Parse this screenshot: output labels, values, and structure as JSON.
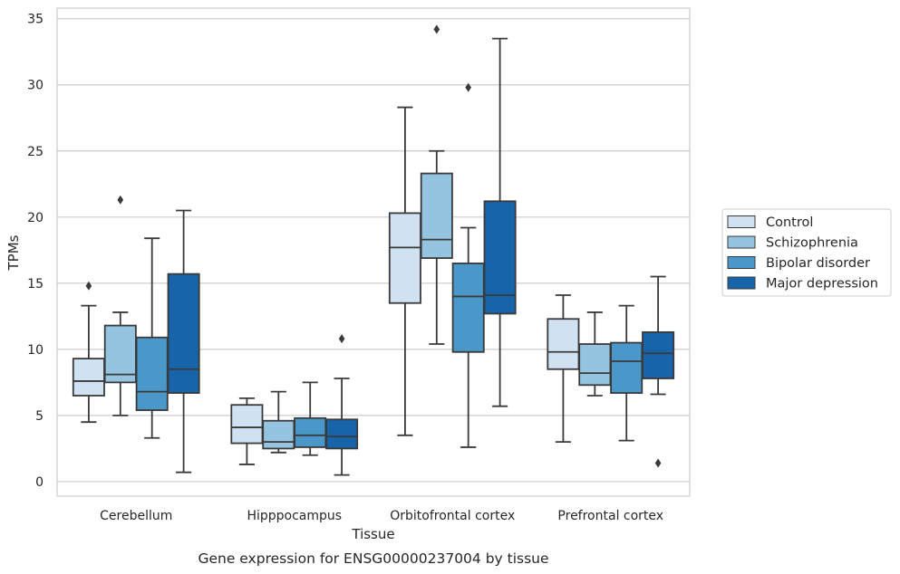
{
  "caption": "Gene expression for ENSG00000237004 by tissue",
  "chart_data": {
    "type": "box",
    "xlabel": "Tissue",
    "ylabel": "TPMs",
    "ylim": [
      -1.1,
      35.8
    ],
    "yticks": [
      0,
      5,
      10,
      15,
      20,
      25,
      30,
      35
    ],
    "grid": "horizontal",
    "legend_position": "right",
    "categories": [
      "Cerebellum",
      "Hipppocampus",
      "Orbitofrontal cortex",
      "Prefrontal cortex"
    ],
    "series": [
      {
        "name": "Control",
        "color": "#d0e1f2",
        "boxes": [
          {
            "whisker_low": 4.5,
            "q1": 6.5,
            "median": 7.6,
            "q3": 9.3,
            "whisker_high": 13.3,
            "outliers": [
              14.8
            ]
          },
          {
            "whisker_low": 1.3,
            "q1": 2.9,
            "median": 4.1,
            "q3": 5.8,
            "whisker_high": 6.3,
            "outliers": []
          },
          {
            "whisker_low": 3.5,
            "q1": 13.5,
            "median": 17.7,
            "q3": 20.3,
            "whisker_high": 28.3,
            "outliers": []
          },
          {
            "whisker_low": 3.0,
            "q1": 8.5,
            "median": 9.8,
            "q3": 12.3,
            "whisker_high": 14.1,
            "outliers": []
          }
        ]
      },
      {
        "name": "Schizophrenia",
        "color": "#94c4df",
        "boxes": [
          {
            "whisker_low": 5.0,
            "q1": 7.5,
            "median": 8.1,
            "q3": 11.8,
            "whisker_high": 12.8,
            "outliers": [
              21.3
            ]
          },
          {
            "whisker_low": 2.2,
            "q1": 2.5,
            "median": 3.0,
            "q3": 4.6,
            "whisker_high": 6.8,
            "outliers": []
          },
          {
            "whisker_low": 10.4,
            "q1": 16.9,
            "median": 18.3,
            "q3": 23.3,
            "whisker_high": 25.0,
            "outliers": [
              34.2
            ]
          },
          {
            "whisker_low": 6.5,
            "q1": 7.3,
            "median": 8.2,
            "q3": 10.4,
            "whisker_high": 12.8,
            "outliers": []
          }
        ]
      },
      {
        "name": "Bipolar disorder",
        "color": "#4a98c9",
        "boxes": [
          {
            "whisker_low": 3.3,
            "q1": 5.4,
            "median": 6.8,
            "q3": 10.9,
            "whisker_high": 18.4,
            "outliers": []
          },
          {
            "whisker_low": 2.0,
            "q1": 2.6,
            "median": 3.5,
            "q3": 4.8,
            "whisker_high": 7.5,
            "outliers": []
          },
          {
            "whisker_low": 2.6,
            "q1": 9.8,
            "median": 14.0,
            "q3": 16.5,
            "whisker_high": 19.2,
            "outliers": [
              29.8
            ]
          },
          {
            "whisker_low": 3.1,
            "q1": 6.7,
            "median": 9.1,
            "q3": 10.5,
            "whisker_high": 13.3,
            "outliers": []
          }
        ]
      },
      {
        "name": "Major depression",
        "color": "#1764ab",
        "boxes": [
          {
            "whisker_low": 0.7,
            "q1": 6.7,
            "median": 8.5,
            "q3": 15.7,
            "whisker_high": 20.5,
            "outliers": []
          },
          {
            "whisker_low": 0.5,
            "q1": 2.5,
            "median": 3.4,
            "q3": 4.7,
            "whisker_high": 7.8,
            "outliers": [
              10.8
            ]
          },
          {
            "whisker_low": 5.7,
            "q1": 12.7,
            "median": 14.1,
            "q3": 21.2,
            "whisker_high": 33.5,
            "outliers": []
          },
          {
            "whisker_low": 6.6,
            "q1": 7.8,
            "median": 9.7,
            "q3": 11.3,
            "whisker_high": 15.5,
            "outliers": [
              1.4
            ]
          }
        ]
      }
    ]
  }
}
